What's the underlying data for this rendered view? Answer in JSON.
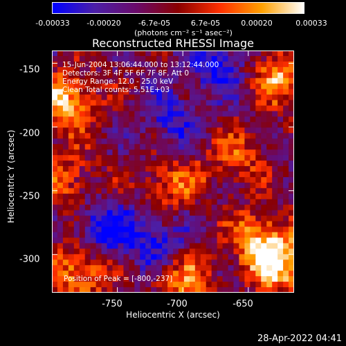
{
  "chart_data": {
    "type": "heatmap",
    "title": "Reconstructed RHESSI Image",
    "xlabel": "Heliocentric X (arcsec)",
    "ylabel": "Heliocentric Y (arcsec)",
    "xlim": [
      -800,
      -615
    ],
    "ylim": [
      -330,
      -140
    ],
    "x_ticks": [
      "-750",
      "-700",
      "-650"
    ],
    "y_ticks": [
      "-150",
      "-200",
      "-250",
      "-300"
    ],
    "x_tick_values": [
      -750,
      -700,
      -650
    ],
    "y_tick_values": [
      -150,
      -200,
      -250,
      -300
    ],
    "colorbar": {
      "ticks": [
        "-0.00033",
        "-0.00020",
        "-6.7e-05",
        "6.7e-05",
        "0.00020",
        "0.00033"
      ],
      "units": "(photons cm⁻² s⁻¹ asec⁻²)",
      "range": [
        -0.00033,
        0.00033
      ],
      "colors": [
        "#0000ff",
        "#4b1fa8",
        "#6a0a6a",
        "#8a0000",
        "#ff3000",
        "#ffa000",
        "#ffffff"
      ]
    },
    "annotations": {
      "time_range": "15-Jun-2004 13:06:44.000 to 13:12:44.000",
      "detectors": "Detectors: 3F 4F 5F 6F 7F 8F, Att 0",
      "energy": "Energy Range: 12.0 - 25.0 keV",
      "clean": "Clean    Total counts: 5.51E+03",
      "peak": "Position of Peak = [-800,-237]"
    },
    "features": [
      {
        "x": -790,
        "y": -180,
        "intensity": 1.0
      },
      {
        "x": -640,
        "y": -290,
        "intensity": 0.9
      },
      {
        "x": -780,
        "y": -315,
        "intensity": 0.85
      },
      {
        "x": -625,
        "y": -160,
        "intensity": 0.8
      },
      {
        "x": -625,
        "y": -310,
        "intensity": 0.8
      },
      {
        "x": -710,
        "y": -245,
        "intensity": 0.6
      },
      {
        "x": -660,
        "y": -225,
        "intensity": 0.55
      },
      {
        "x": -700,
        "y": -320,
        "intensity": 0.7
      },
      {
        "x": -790,
        "y": -240,
        "intensity": 0.6
      },
      {
        "x": -760,
        "y": -280,
        "intensity": -0.7
      },
      {
        "x": -720,
        "y": -290,
        "intensity": -0.6
      },
      {
        "x": -675,
        "y": -150,
        "intensity": -0.7
      },
      {
        "x": -710,
        "y": -195,
        "intensity": -0.5
      }
    ]
  },
  "footer": {
    "timestamp": "28-Apr-2022 04:41"
  }
}
